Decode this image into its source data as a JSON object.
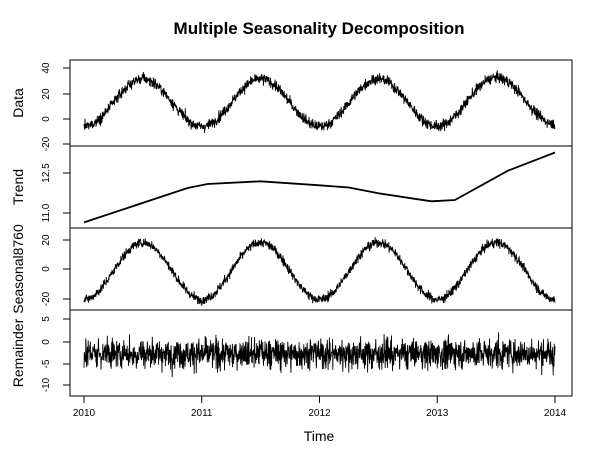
{
  "chart_data": {
    "type": "line",
    "title": "Multiple Seasonality Decomposition",
    "xlabel": "Time",
    "xlim": [
      2010,
      2014
    ],
    "x_ticks": [
      "2010",
      "2011",
      "2012",
      "2013",
      "2014"
    ],
    "grid": false,
    "legend": "none",
    "line_color": "#000000",
    "panels": [
      {
        "name": "Data",
        "ylim": [
          -22,
          42
        ],
        "y_ticks": [
          "-20",
          "0",
          "20",
          "40"
        ],
        "description_points": {
          "x": [
            2010.0,
            2010.5,
            2011.0,
            2011.5,
            2012.0,
            2012.5,
            2013.0,
            2013.5,
            2014.0
          ],
          "y": [
            -8,
            33,
            0,
            28,
            -6,
            30,
            -4,
            30,
            2
          ]
        }
      },
      {
        "name": "Trend",
        "ylim": [
          10.9,
          13.6
        ],
        "y_ticks": [
          "11.0",
          "12.5"
        ],
        "x": [
          2010.0,
          2010.88,
          2011.05,
          2011.5,
          2012.0,
          2012.25,
          2012.5,
          2012.95,
          2013.15,
          2013.6,
          2014.0
        ],
        "y": [
          10.96,
          12.25,
          12.4,
          12.5,
          12.35,
          12.27,
          12.05,
          11.75,
          11.8,
          12.9,
          13.58
        ]
      },
      {
        "name": "Seasonal8760",
        "ylim": [
          -25,
          25
        ],
        "y_ticks": [
          "-20",
          "0",
          "20"
        ],
        "description_points": {
          "x": [
            2010.0,
            2010.5,
            2011.0,
            2011.5,
            2012.0,
            2012.5,
            2013.0,
            2013.5,
            2014.0
          ],
          "y": [
            -20,
            18,
            -20,
            18,
            -20,
            18,
            -20,
            18,
            -20
          ]
        }
      },
      {
        "name": "Remainder",
        "ylim": [
          -11,
          11
        ],
        "y_ticks": [
          "-10",
          "-5",
          "0",
          "5"
        ],
        "description_points": {
          "x": [
            2010.0,
            2011.0,
            2012.0,
            2013.0,
            2014.0
          ],
          "y": [
            0,
            0,
            0,
            0,
            0
          ]
        }
      }
    ]
  }
}
